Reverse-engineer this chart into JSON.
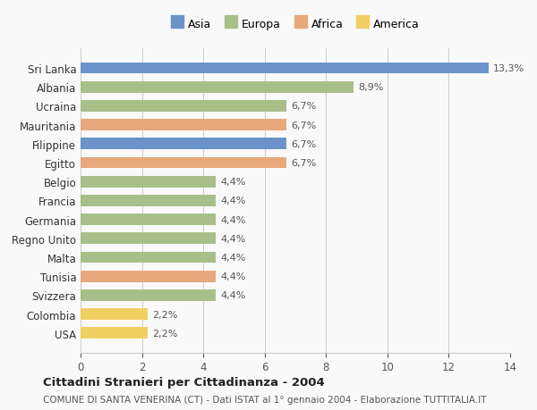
{
  "countries": [
    "Sri Lanka",
    "Albania",
    "Ucraina",
    "Mauritania",
    "Filippine",
    "Egitto",
    "Belgio",
    "Francia",
    "Germania",
    "Regno Unito",
    "Malta",
    "Tunisia",
    "Svizzera",
    "Colombia",
    "USA"
  ],
  "values": [
    13.3,
    8.9,
    6.7,
    6.7,
    6.7,
    6.7,
    4.4,
    4.4,
    4.4,
    4.4,
    4.4,
    4.4,
    4.4,
    2.2,
    2.2
  ],
  "labels": [
    "13,3%",
    "8,9%",
    "6,7%",
    "6,7%",
    "6,7%",
    "6,7%",
    "4,4%",
    "4,4%",
    "4,4%",
    "4,4%",
    "4,4%",
    "4,4%",
    "4,4%",
    "2,2%",
    "2,2%"
  ],
  "continents": [
    "Asia",
    "Europa",
    "Europa",
    "Africa",
    "Asia",
    "Africa",
    "Europa",
    "Europa",
    "Europa",
    "Europa",
    "Europa",
    "Africa",
    "Europa",
    "America",
    "America"
  ],
  "colors": {
    "Asia": "#6b93c9",
    "Europa": "#a8bf8a",
    "Africa": "#e8a87c",
    "America": "#f0d060"
  },
  "legend_order": [
    "Asia",
    "Europa",
    "Africa",
    "America"
  ],
  "title": "Cittadini Stranieri per Cittadinanza - 2004",
  "subtitle": "COMUNE DI SANTA VENERINA (CT) - Dati ISTAT al 1° gennaio 2004 - Elaborazione TUTTITALIA.IT",
  "xlim": [
    0,
    14
  ],
  "xticks": [
    0,
    2,
    4,
    6,
    8,
    10,
    12,
    14
  ],
  "background_color": "#f9f9f9",
  "grid_color": "#cccccc"
}
